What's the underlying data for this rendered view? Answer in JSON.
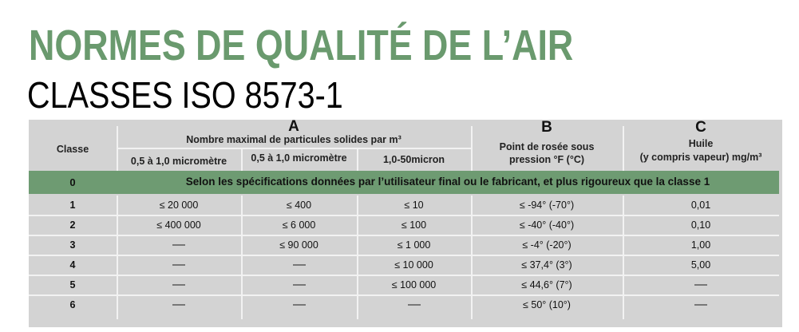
{
  "title": "NORMES DE QUALITÉ DE L’AIR",
  "subtitle": "CLASSES ISO 8573-1",
  "colors": {
    "title": "#6a9a6e",
    "highlight_row": "#6e9b72",
    "table_bg": "#d3d3d3"
  },
  "table": {
    "class_header": "Classe",
    "A": {
      "letter": "A",
      "label": "Nombre maximal de particules solides par m³",
      "sub": [
        "0,5 à 1,0 micromètre",
        "0,5 à 1,0 micromètre",
        "1,0-50micron"
      ]
    },
    "B": {
      "letter": "B",
      "label1": "Point de rosée sous",
      "label2": "pression °F (°C)"
    },
    "C": {
      "letter": "C",
      "label1": "Huile",
      "label2": "(y compris vapeur) mg/m³"
    },
    "class0": {
      "classe": "0",
      "text": "Selon les spécifications données par l’utilisateur final ou le fabricant, et plus rigoureux que la classe 1"
    },
    "rows": [
      [
        "1",
        "≤ 20 000",
        "≤ 400",
        "≤ 10",
        "≤ -94° (-70°)",
        "0,01"
      ],
      [
        "2",
        "≤ 400 000",
        "≤ 6 000",
        "≤ 100",
        "≤ -40° (-40°)",
        "0,10"
      ],
      [
        "3",
        "—",
        "≤ 90 000",
        "≤ 1 000",
        "≤ -4° (-20°)",
        "1,00"
      ],
      [
        "4",
        "—",
        "—",
        "≤ 10 000",
        "≤ 37,4° (3°)",
        "5,00"
      ],
      [
        "5",
        "—",
        "—",
        "≤ 100 000",
        "≤ 44,6° (7°)",
        "—"
      ],
      [
        "6",
        "—",
        "—",
        "—",
        "≤ 50° (10°)",
        "—"
      ]
    ]
  }
}
